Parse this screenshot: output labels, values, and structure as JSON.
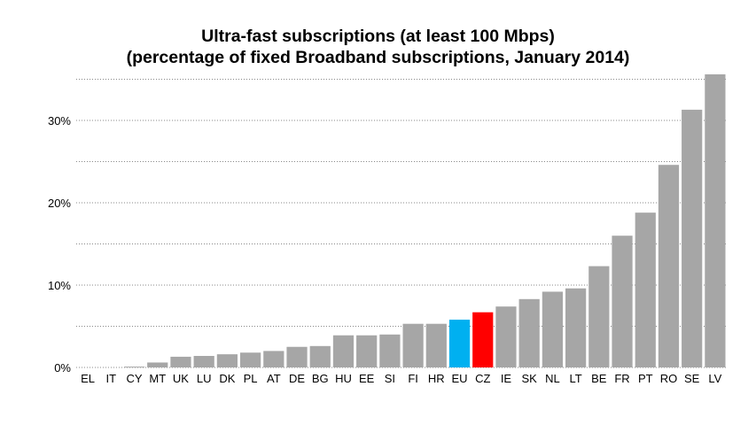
{
  "chart_data": {
    "type": "bar",
    "title": "Ultra-fast subscriptions (at least 100 Mbps)",
    "subtitle": "(percentage of fixed Broadband subscriptions, January 2014)",
    "xlabel": "",
    "ylabel": "",
    "ylim": [
      0,
      35
    ],
    "yticks": [
      0,
      10,
      20,
      30
    ],
    "ytick_labels": [
      "0%",
      "10%",
      "20%",
      "30%"
    ],
    "grid": true,
    "categories": [
      "EL",
      "IT",
      "CY",
      "MT",
      "UK",
      "LU",
      "DK",
      "PL",
      "AT",
      "DE",
      "BG",
      "HU",
      "EE",
      "SI",
      "FI",
      "HR",
      "EU",
      "CZ",
      "IE",
      "SK",
      "NL",
      "LT",
      "BE",
      "FR",
      "PT",
      "RO",
      "SE",
      "LV"
    ],
    "values": [
      0.0,
      0.0,
      0.1,
      0.6,
      1.3,
      1.4,
      1.6,
      1.8,
      2.0,
      2.5,
      2.6,
      3.9,
      3.9,
      4.0,
      5.3,
      5.3,
      5.8,
      6.7,
      7.4,
      8.3,
      9.2,
      9.6,
      12.3,
      16.0,
      18.8,
      24.6,
      31.3,
      35.6
    ],
    "colors": {
      "default": "#a6a6a6",
      "EU": "#00b0f0",
      "CZ": "#ff0000",
      "grid": "#888888"
    }
  }
}
